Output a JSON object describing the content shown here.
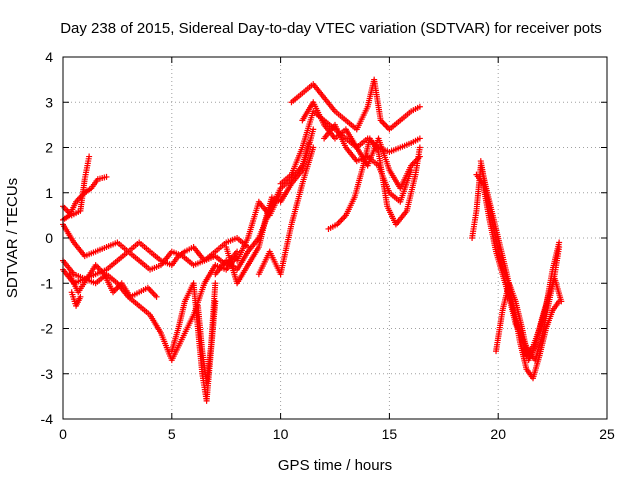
{
  "chart_data": {
    "type": "scatter",
    "title": "Day 238 of 2015, Sidereal Day-to-day VTEC variation (SDTVAR) for receiver pots",
    "xlabel": "GPS time / hours",
    "ylabel": "SDTVAR / TECUs",
    "xlim": [
      0,
      25
    ],
    "ylim": [
      -4,
      4
    ],
    "xticks": [
      "0",
      "5",
      "10",
      "15",
      "20",
      "25"
    ],
    "yticks": [
      "-4",
      "-3",
      "-2",
      "-1",
      "0",
      "1",
      "2",
      "3",
      "4"
    ],
    "grid": true,
    "marker": "plus",
    "color": "#ff0000",
    "series": [
      {
        "x": [
          0.0,
          0.3,
          0.6,
          1.0,
          1.3,
          1.6,
          2.0
        ],
        "y": [
          0.4,
          0.5,
          0.8,
          1.0,
          1.1,
          1.3,
          1.35
        ]
      },
      {
        "x": [
          0.0,
          0.4,
          0.8,
          1.0,
          1.2
        ],
        "y": [
          0.7,
          0.5,
          0.6,
          1.3,
          1.8
        ]
      },
      {
        "x": [
          0.0,
          0.5,
          1.0,
          1.5,
          2.0,
          2.5,
          3.0,
          3.5,
          4.0,
          4.5,
          5.0,
          5.5,
          6.0,
          6.5,
          7.0,
          7.5,
          8.0,
          8.5
        ],
        "y": [
          0.3,
          -0.1,
          -0.4,
          -0.3,
          -0.2,
          -0.1,
          -0.3,
          -0.5,
          -0.7,
          -0.6,
          -0.3,
          -0.4,
          -0.6,
          -0.5,
          -0.3,
          -0.1,
          0.0,
          -0.2
        ]
      },
      {
        "x": [
          0.0,
          0.5,
          1.0,
          1.5,
          2.0,
          2.5,
          3.0,
          3.5,
          4.0,
          4.5,
          5.0,
          5.3,
          5.6,
          6.0,
          6.5,
          7.0,
          7.5,
          8.0
        ],
        "y": [
          -0.5,
          -0.8,
          -0.9,
          -0.8,
          -0.7,
          -0.5,
          -0.3,
          -0.1,
          -0.3,
          -0.5,
          -0.6,
          -0.4,
          -0.3,
          -0.2,
          -0.5,
          -0.4,
          -0.6,
          -0.3
        ]
      },
      {
        "x": [
          0.0,
          0.5,
          1.0,
          1.5,
          2.0,
          2.5,
          3.0,
          3.5,
          4.0,
          4.5,
          5.0,
          5.5,
          6.0,
          6.5,
          7.0,
          7.5,
          8.0
        ],
        "y": [
          -0.7,
          -1.0,
          -0.9,
          -1.0,
          -0.8,
          -1.0,
          -1.3,
          -1.5,
          -1.7,
          -2.1,
          -2.7,
          -2.2,
          -1.7,
          -1.0,
          -0.6,
          -0.7,
          -0.4
        ]
      },
      {
        "x": [
          0.3,
          0.7,
          1.1,
          1.5,
          1.9,
          2.3,
          2.7,
          3.1,
          3.5,
          3.9,
          4.3
        ],
        "y": [
          -0.8,
          -1.2,
          -0.9,
          -0.6,
          -0.8,
          -1.2,
          -1.0,
          -1.3,
          -1.2,
          -1.1,
          -1.3
        ]
      },
      {
        "x": [
          0.4,
          0.6,
          0.8
        ],
        "y": [
          -1.2,
          -1.5,
          -1.3
        ]
      },
      {
        "x": [
          5.0,
          5.3,
          5.6,
          6.0,
          6.2,
          6.4,
          6.6,
          6.8,
          7.0
        ],
        "y": [
          -2.5,
          -2.0,
          -1.4,
          -1.0,
          -2.0,
          -3.0,
          -3.6,
          -2.5,
          -1.4
        ]
      },
      {
        "x": [
          6.2,
          6.4,
          6.6,
          6.8,
          7.0
        ],
        "y": [
          -1.5,
          -2.5,
          -3.2,
          -2.4,
          -1.0
        ]
      },
      {
        "x": [
          7.0,
          7.5,
          8.0,
          8.5,
          9.0,
          9.5,
          10.0,
          10.5,
          11.0,
          11.3
        ],
        "y": [
          -0.8,
          -0.5,
          -0.7,
          -0.3,
          0.0,
          0.6,
          1.1,
          1.3,
          1.6,
          2.1
        ]
      },
      {
        "x": [
          7.5,
          8.0,
          8.5,
          9.0,
          9.3,
          9.6,
          10.0,
          10.5,
          11.0,
          11.5
        ],
        "y": [
          -0.2,
          -1.0,
          -0.6,
          -0.2,
          0.4,
          0.9,
          0.8,
          1.2,
          1.5,
          2.4
        ]
      },
      {
        "x": [
          8.0,
          8.5,
          9.0,
          9.5,
          10.0
        ],
        "y": [
          -0.5,
          0.0,
          0.8,
          0.5,
          1.0
        ]
      },
      {
        "x": [
          9.0,
          9.5,
          10.0,
          10.5,
          11.0,
          11.5
        ],
        "y": [
          -0.8,
          -0.3,
          -0.8,
          0.3,
          1.2,
          2.0
        ]
      },
      {
        "x": [
          10.0,
          10.5,
          11.0,
          11.5,
          12.0,
          12.5,
          13.0,
          13.5,
          14.0,
          14.5,
          15.0,
          15.5,
          16.0,
          16.4
        ],
        "y": [
          1.2,
          1.4,
          2.0,
          2.8,
          2.6,
          2.4,
          2.2,
          2.0,
          2.2,
          2.0,
          1.9,
          2.0,
          2.1,
          2.2
        ]
      },
      {
        "x": [
          10.5,
          11.0,
          11.5,
          12.0,
          12.5,
          13.0,
          13.5,
          14.0,
          14.3,
          14.6,
          15.0,
          15.5,
          16.0,
          16.4
        ],
        "y": [
          3.0,
          3.2,
          3.4,
          3.1,
          2.8,
          2.6,
          2.4,
          2.9,
          3.5,
          2.6,
          2.4,
          2.6,
          2.8,
          2.9
        ]
      },
      {
        "x": [
          11.0,
          11.5,
          12.0,
          12.5,
          13.0,
          13.5,
          14.0,
          14.5,
          15.0,
          15.5,
          16.0,
          16.4
        ],
        "y": [
          2.6,
          3.0,
          2.5,
          2.2,
          2.4,
          2.0,
          1.6,
          2.2,
          1.5,
          1.1,
          1.6,
          1.8
        ]
      },
      {
        "x": [
          12.0,
          12.5,
          13.0,
          13.5,
          14.0,
          14.5,
          15.0,
          15.5,
          16.0
        ],
        "y": [
          2.2,
          2.5,
          2.0,
          1.7,
          1.8,
          1.6,
          1.0,
          0.8,
          1.5
        ]
      },
      {
        "x": [
          12.2,
          12.6,
          13.0,
          13.4,
          13.8,
          14.1,
          14.5,
          14.9,
          15.3,
          15.8,
          16.2,
          16.4
        ],
        "y": [
          0.2,
          0.3,
          0.5,
          0.9,
          1.6,
          2.2,
          1.9,
          0.7,
          0.3,
          0.6,
          1.4,
          2.0
        ]
      },
      {
        "x": [
          18.8,
          19.0,
          19.2,
          19.5,
          19.8,
          20.1,
          20.4,
          20.7,
          21.0,
          21.3,
          21.6,
          21.9,
          22.2,
          22.5,
          22.8
        ],
        "y": [
          0.0,
          0.6,
          1.6,
          1.0,
          0.4,
          -0.2,
          -0.8,
          -1.5,
          -2.3,
          -2.9,
          -3.1,
          -2.6,
          -2.0,
          -1.6,
          -1.4
        ]
      },
      {
        "x": [
          19.0,
          19.3,
          19.6,
          19.9,
          20.2,
          20.5,
          20.8,
          21.1,
          21.4,
          21.7,
          22.0,
          22.3,
          22.6,
          22.8
        ],
        "y": [
          1.4,
          1.2,
          0.4,
          -0.3,
          -0.8,
          -1.3,
          -1.9,
          -2.2,
          -2.5,
          -2.7,
          -2.2,
          -1.5,
          -0.8,
          -0.2
        ]
      },
      {
        "x": [
          19.2,
          19.5,
          19.8,
          20.1,
          20.4,
          20.7,
          21.0,
          21.3,
          21.6,
          21.9,
          22.2,
          22.5,
          22.8
        ],
        "y": [
          1.7,
          0.9,
          0.2,
          -0.5,
          -0.9,
          -1.6,
          -2.0,
          -2.6,
          -2.4,
          -2.0,
          -1.5,
          -0.7,
          -0.1
        ]
      },
      {
        "x": [
          19.9,
          20.2,
          20.5,
          20.8,
          21.1,
          21.4,
          21.7,
          22.0,
          22.3,
          22.6,
          22.9
        ],
        "y": [
          -2.5,
          -1.6,
          -1.0,
          -1.4,
          -2.0,
          -2.7,
          -2.4,
          -1.8,
          -1.3,
          -0.9,
          -1.4
        ]
      }
    ]
  }
}
